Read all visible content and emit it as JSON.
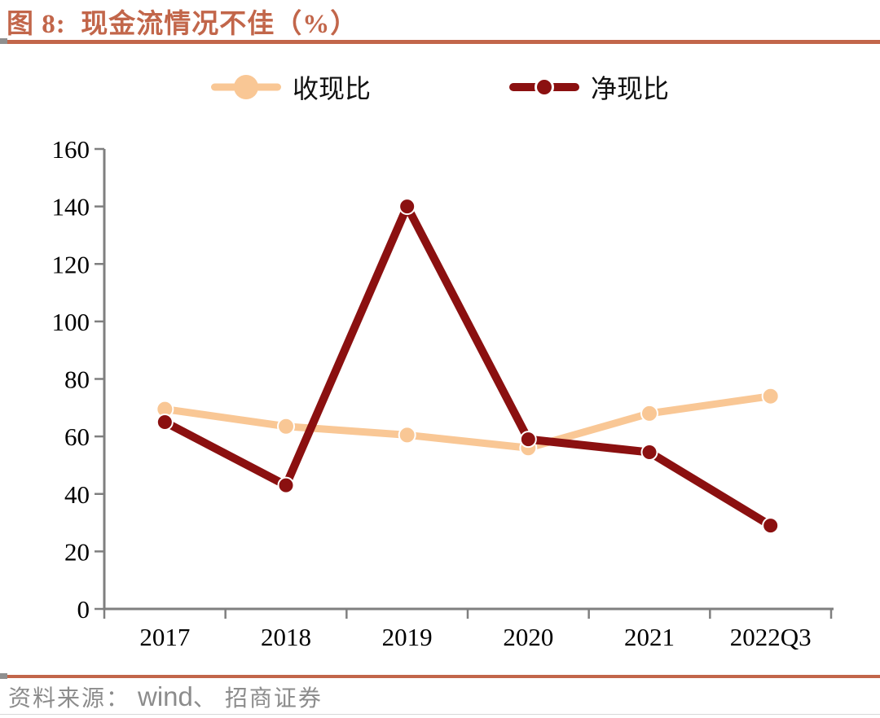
{
  "title": "图 8:  现金流情况不佳（%）",
  "colors": {
    "accent": "#C2664A",
    "axis": "#7F7F7F",
    "text": "#000000",
    "source_text": "#8C8C8C",
    "notch": "#8F8F8F",
    "hairline": "#D8D8D8"
  },
  "source": {
    "label": "资料来源： ",
    "vendor": "wind",
    "separator": "、 ",
    "agency": "招商证券"
  },
  "chart_data": {
    "type": "line",
    "title": "图 8: 现金流情况不佳（%）",
    "categories": [
      "2017",
      "2018",
      "2019",
      "2020",
      "2021",
      "2022Q3"
    ],
    "series": [
      {
        "name": "收现比",
        "color": "#F9C795",
        "values": [
          69.5,
          63.5,
          60.5,
          56,
          68,
          74
        ],
        "line_width": 9,
        "marker_radius": 10
      },
      {
        "name": "净现比",
        "color": "#8B1010",
        "values": [
          65,
          43,
          140,
          59,
          54.5,
          29
        ],
        "line_width": 10,
        "marker_radius": 9.5
      }
    ],
    "ylim": [
      0,
      160
    ],
    "ytick_step": 20,
    "xlabel": "",
    "ylabel": "",
    "grid": false,
    "legend_position": "top"
  }
}
